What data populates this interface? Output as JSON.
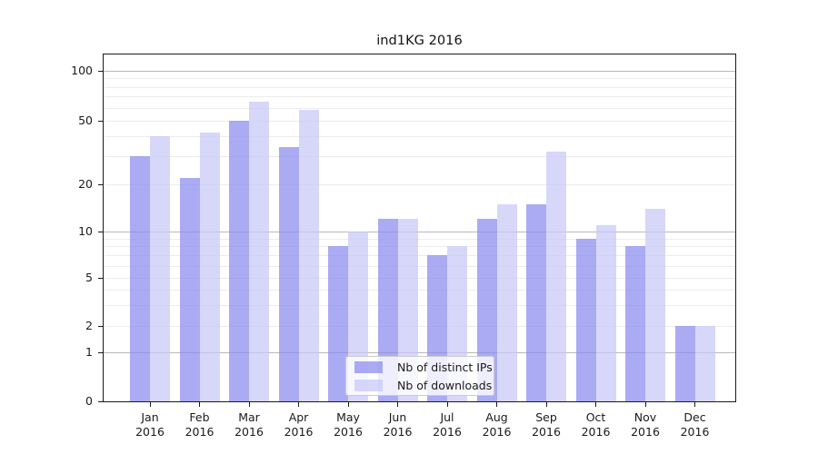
{
  "title": "ind1KG 2016",
  "chart_data": {
    "type": "bar",
    "title": "ind1KG 2016",
    "categories": [
      "Jan",
      "Feb",
      "Mar",
      "Apr",
      "May",
      "Jun",
      "Jul",
      "Aug",
      "Sep",
      "Oct",
      "Nov",
      "Dec"
    ],
    "year_label": "2016",
    "series": [
      {
        "name": "Nb of distinct IPs",
        "color": "#8a8aee",
        "values": [
          30,
          22,
          50,
          34,
          8,
          12,
          7,
          12,
          15,
          9,
          8,
          2
        ]
      },
      {
        "name": "Nb of downloads",
        "color": "#c7c7f8",
        "values": [
          40,
          42,
          65,
          58,
          10,
          12,
          8,
          15,
          32,
          11,
          14,
          2
        ]
      }
    ],
    "xlabel": "",
    "ylabel": "",
    "yscale": "symlog",
    "yticks": [
      100,
      50,
      20,
      10,
      5,
      2,
      1,
      0
    ],
    "minor_yticks": [
      3,
      4,
      6,
      7,
      8,
      9,
      30,
      40,
      60,
      70,
      80,
      90
    ],
    "major_grid_yticks": [
      1,
      10,
      100
    ],
    "ylim": [
      0,
      128
    ],
    "grid": true,
    "legend_position": "lower center",
    "bar_opacity": 0.72
  }
}
